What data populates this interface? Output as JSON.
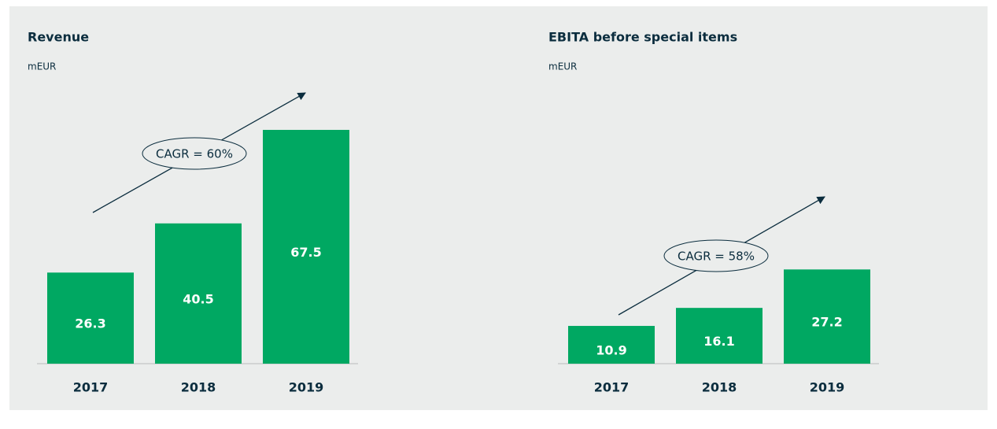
{
  "chart_data": [
    {
      "type": "bar",
      "title": "Revenue",
      "subtitle": "mEUR",
      "categories": [
        "2017",
        "2018",
        "2019"
      ],
      "values": [
        26.3,
        40.5,
        67.5
      ],
      "color": "#00a862",
      "annotation": "CAGR = 60%"
    },
    {
      "type": "bar",
      "title": "EBITA before special items",
      "subtitle": "mEUR",
      "categories": [
        "2017",
        "2018",
        "2019"
      ],
      "values": [
        10.9,
        16.1,
        27.2
      ],
      "color": "#00a862",
      "annotation": "CAGR = 58%"
    }
  ]
}
